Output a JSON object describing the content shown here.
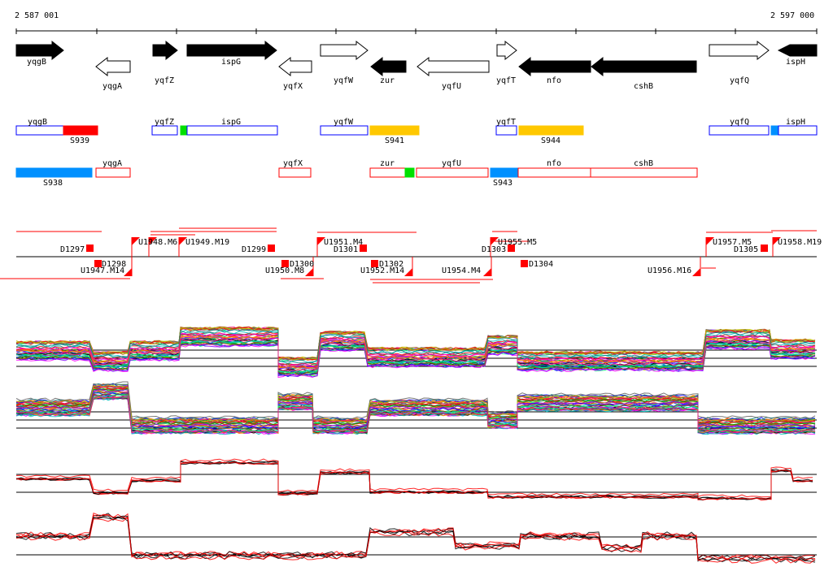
{
  "ruler": {
    "start": "2 587 001",
    "end": "2 597 000"
  },
  "genes": [
    {
      "name": "yqgB",
      "strand": "+",
      "filled": true
    },
    {
      "name": "yqgA",
      "strand": "-",
      "filled": false
    },
    {
      "name": "yqfZ",
      "strand": "+",
      "filled": true
    },
    {
      "name": "ispG",
      "strand": "+",
      "filled": true
    },
    {
      "name": "yqfX",
      "strand": "-",
      "filled": false
    },
    {
      "name": "yqfW",
      "strand": "+",
      "filled": false
    },
    {
      "name": "zur",
      "strand": "-",
      "filled": true
    },
    {
      "name": "yqfU",
      "strand": "-",
      "filled": false
    },
    {
      "name": "yqfT",
      "strand": "+",
      "filled": false
    },
    {
      "name": "nfo",
      "strand": "-",
      "filled": true
    },
    {
      "name": "cshB",
      "strand": "-",
      "filled": true
    },
    {
      "name": "yqfQ",
      "strand": "+",
      "filled": false
    },
    {
      "name": "ispH",
      "strand": "+",
      "filled": true
    }
  ],
  "plus_annotation": {
    "genes": [
      "yqgB",
      "yqfZ",
      "ispG",
      "yqfW",
      "yqfT",
      "yqfQ",
      "ispH"
    ],
    "segments": [
      {
        "label": "S939",
        "color": "#ff0000"
      },
      {
        "label": "S941",
        "color": "#ffc800"
      },
      {
        "label": "S944",
        "color": "#ffc800"
      }
    ]
  },
  "minus_annotation": {
    "genes": [
      "yqgA",
      "yqfX",
      "zur",
      "yqfU",
      "nfo",
      "cshB"
    ],
    "segments": [
      {
        "label": "S938",
        "color": "#0090ff"
      },
      {
        "label": "S943",
        "color": "#0090ff"
      }
    ]
  },
  "features": {
    "above": [
      "D1297",
      "U1948.M6",
      "U1949.M19",
      "D1299",
      "U1951.M4",
      "D1301",
      "D1303",
      "U1955.M5",
      "U1957.M5",
      "D1305",
      "U1958.M19"
    ],
    "below": [
      "D1298",
      "U1947.M14",
      "U1950.M8",
      "D1300",
      "D1302",
      "U1952.M14",
      "U1954.M4",
      "D1304",
      "U1956.M16"
    ]
  },
  "colors": {
    "red": "#ff0000",
    "blue": "#0000ff",
    "green": "#00e000",
    "orange": "#ffc800",
    "cyan": "#0090ff"
  }
}
